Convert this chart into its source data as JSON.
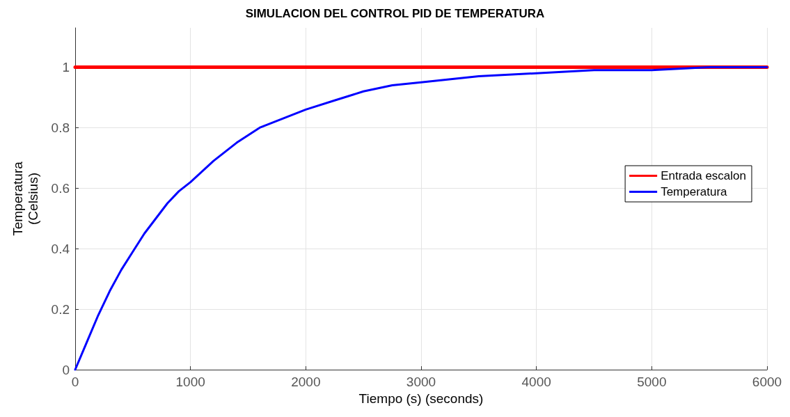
{
  "chart_data": {
    "type": "line",
    "title": "SIMULACION DEL CONTROL PID DE TEMPERATURA",
    "xlabel": "Tiempo (s) (seconds)",
    "ylabel": "Temperatura\n(Celsius)",
    "series": [
      {
        "name": "Entrada escalon",
        "color": "#ff0000",
        "x": [
          0,
          6000
        ],
        "values": [
          1,
          1
        ]
      },
      {
        "name": "Temperatura",
        "color": "#0000ff",
        "x": [
          0,
          100,
          200,
          300,
          400,
          500,
          600,
          700,
          800,
          900,
          1000,
          1200,
          1400,
          1600,
          1800,
          2000,
          2250,
          2500,
          2750,
          3000,
          3500,
          4000,
          4500,
          5000,
          5500,
          6000
        ],
        "values": [
          0,
          0.09,
          0.18,
          0.26,
          0.33,
          0.39,
          0.45,
          0.5,
          0.55,
          0.59,
          0.62,
          0.69,
          0.75,
          0.8,
          0.83,
          0.86,
          0.89,
          0.92,
          0.94,
          0.95,
          0.97,
          0.98,
          0.99,
          0.99,
          1,
          1
        ]
      }
    ],
    "xlim": [
      0,
      6000
    ],
    "xticks": [
      0,
      1000,
      2000,
      3000,
      4000,
      5000,
      6000
    ],
    "ylim": [
      0,
      1.13
    ],
    "yticks": [
      0,
      0.2,
      0.4,
      0.6,
      0.8,
      1
    ],
    "grid": true,
    "legend": "right",
    "marker": "none",
    "line_style": "solid"
  }
}
